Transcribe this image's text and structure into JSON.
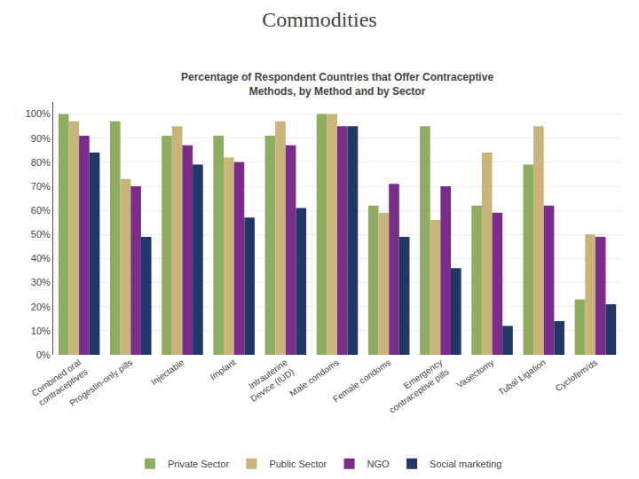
{
  "chart_data": {
    "type": "bar",
    "title": "Commodities",
    "subtitle": "Percentage of Respondent Countries that Offer Contraceptive\nMethods, by Method and by Sector",
    "categories": [
      "Combined oral\ncontraceptives",
      "Progestin-only pills",
      "Injectable",
      "Implant",
      "Intrauterine\nDevice (IUD)",
      "Male condoms",
      "Female condoms",
      "Emergency\ncontraceptive pills",
      "Vasectomy",
      "Tubal Ligation",
      "Cyclofem/ds"
    ],
    "series": [
      {
        "name": "Private Sector",
        "color": "#8fad60",
        "values": [
          100,
          97,
          91,
          91,
          91,
          100,
          62,
          95,
          62,
          79,
          23
        ]
      },
      {
        "name": "Public Sector",
        "color": "#c9b57a",
        "values": [
          97,
          73,
          95,
          82,
          97,
          100,
          59,
          56,
          84,
          95,
          50
        ]
      },
      {
        "name": "NGO",
        "color": "#7b2d8b",
        "values": [
          91,
          70,
          87,
          80,
          87,
          95,
          71,
          70,
          59,
          62,
          49
        ]
      },
      {
        "name": "Social marketing",
        "color": "#1f3864",
        "values": [
          84,
          49,
          79,
          57,
          61,
          95,
          49,
          36,
          12,
          14,
          21
        ]
      }
    ],
    "ylim": [
      0,
      105
    ],
    "yticks": [
      {
        "value": 0,
        "label": "0%"
      },
      {
        "value": 10,
        "label": "10%"
      },
      {
        "value": 20,
        "label": "20%"
      },
      {
        "value": 30,
        "label": "30%"
      },
      {
        "value": 40,
        "label": "40%"
      },
      {
        "value": 50,
        "label": "50%"
      },
      {
        "value": 60,
        "label": "60%"
      },
      {
        "value": 70,
        "label": "70%"
      },
      {
        "value": 80,
        "label": "80%"
      },
      {
        "value": 90,
        "label": "90%"
      },
      {
        "value": 100,
        "label": "100%"
      }
    ],
    "grid": true,
    "legend": "bottom"
  }
}
